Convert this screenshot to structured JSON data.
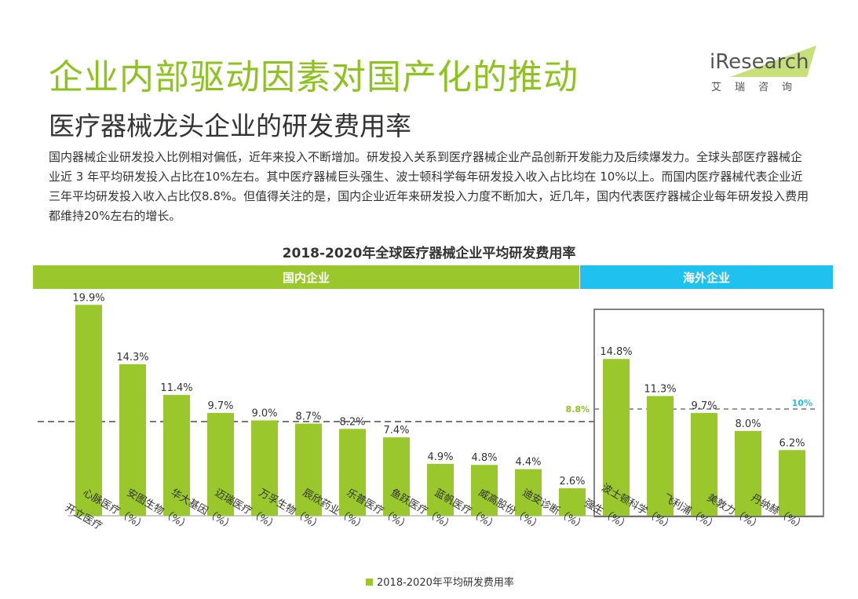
{
  "header": {
    "title": "企业内部驱动因素对国产化的推动",
    "subtitle": "医疗器械龙头企业的研发费用率",
    "logo_text": "iResearch",
    "logo_sub": "艾瑞咨询",
    "description": "国内器械企业研发投入比例相对偏低，近年来投入不断增加。研发投入关系到医疗器械企业产品创新开发能力及后续爆发力。全球头部医疗器械企业近 3 年平均研发投入占比在10%左右。其中医疗器械巨头强生、波士顿科学每年研发投入收入占比均在 10%以上。而国内医疗器械代表企业近三年平均研发投入收入占比仅8.8%。但值得关注的是，国内企业近年来研发投入力度不断加大，近几年，国内代表医疗器械企业每年研发投入费用都维持20%左右的增长。"
  },
  "colors": {
    "bar": "#9ac72b",
    "domestic": "#9ac72b",
    "overseas": "#1fc1ee",
    "green_text": "#8dc21f"
  },
  "chart_data": {
    "type": "bar",
    "title": "2018-2020年全球医疗器械企业平均研发费用率",
    "groups": [
      {
        "label": "国内企业",
        "from": 0,
        "to": 11,
        "avg_label": "8.8%",
        "avg_value": 8.8
      },
      {
        "label": "海外企业",
        "from": 12,
        "to": 16,
        "avg_label": "10%",
        "avg_value": 10
      }
    ],
    "categories": [
      "开立医疗",
      "心脉医疗（%）",
      "安图生物（%）",
      "华大基因（%）",
      "迈瑞医疗（%）",
      "万孚生物（%）",
      "辰欣药业（%）",
      "乐普医疗（%）",
      "鱼跃医疗（%）",
      "蓝帆医疗（%）",
      "威高股份（%）",
      "迪安诊断（%）",
      "强生（%）",
      "波士顿科学（%）",
      "飞利浦（%）",
      "美敦力（%）",
      "丹纳赫（%）"
    ],
    "values": [
      19.9,
      14.3,
      11.4,
      9.7,
      9.0,
      8.7,
      8.2,
      7.4,
      4.9,
      4.8,
      4.4,
      2.6,
      14.8,
      11.3,
      9.7,
      8.0,
      6.2
    ],
    "value_labels": [
      "19.9%",
      "14.3%",
      "11.4%",
      "9.7%",
      "9.0%",
      "8.7%",
      "8.2%",
      "7.4%",
      "4.9%",
      "4.8%",
      "4.4%",
      "2.6%",
      "14.8%",
      "11.3%",
      "9.7%",
      "8.0%",
      "6.2%"
    ],
    "legend": "2018-2020年平均研发费用率",
    "legend_position": "bottom"
  }
}
